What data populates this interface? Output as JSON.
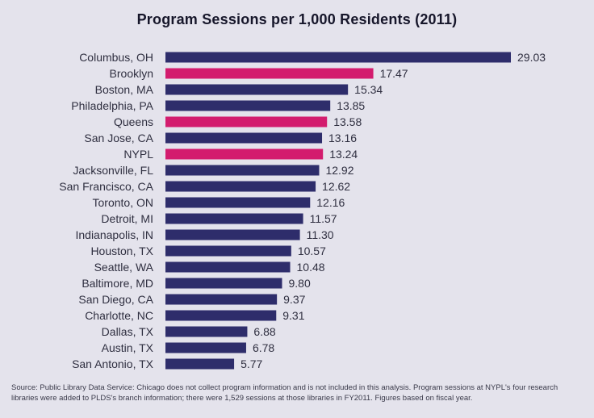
{
  "chart_data": {
    "type": "bar",
    "orientation": "horizontal",
    "title": "Program Sessions per 1,000 Residents (2011)",
    "categories": [
      "Columbus, OH",
      "Brooklyn",
      "Boston, MA",
      "Philadelphia, PA",
      "Queens",
      "San Jose, CA",
      "NYPL",
      "Jacksonville, FL",
      "San Francisco, CA",
      "Toronto, ON",
      "Detroit, MI",
      "Indianapolis, IN",
      "Houston, TX",
      "Seattle, WA",
      "Baltimore, MD",
      "San Diego, CA",
      "Charlotte, NC",
      "Dallas, TX",
      "Austin, TX",
      "San Antonio, TX"
    ],
    "values": [
      29.03,
      17.47,
      15.34,
      13.85,
      13.58,
      13.16,
      13.24,
      12.92,
      12.62,
      12.16,
      11.57,
      11.3,
      10.57,
      10.48,
      9.8,
      9.37,
      9.31,
      6.88,
      6.78,
      5.77
    ],
    "value_labels": [
      "29.03",
      "17.47",
      "15.34",
      "13.85",
      "13.58",
      "13.16",
      "13.24",
      "12.92",
      "12.62",
      "12.16",
      "11.57",
      "11.30",
      "10.57",
      "10.48",
      "9.80",
      "9.37",
      "9.31",
      "6.88",
      "6.78",
      "5.77"
    ],
    "highlighted": [
      "Brooklyn",
      "Queens",
      "NYPL"
    ],
    "colors": {
      "default": "#2e2d6b",
      "highlight": "#d31c6e",
      "background": "#e4e3ec"
    },
    "xlim": [
      0,
      29.03
    ],
    "grid": false,
    "legend": "none"
  },
  "source": "Source: Public Library Data Service: Chicago does not collect program information and is not included in this analysis. Program sessions at NYPL's four research libraries were added to PLDS's branch information; there were 1,529 sessions at those libraries in FY2011. Figures based on fiscal year."
}
